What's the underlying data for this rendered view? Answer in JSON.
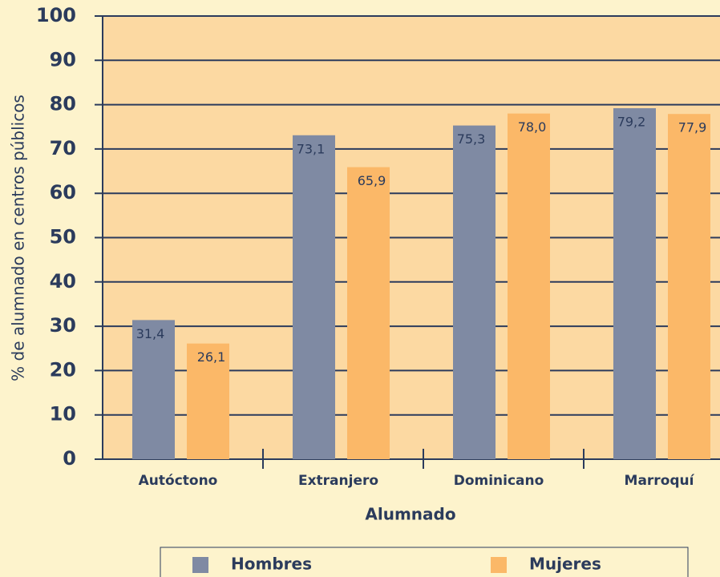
{
  "chart_data": {
    "type": "bar",
    "xlabel": "Alumnado",
    "ylabel": "% de alumnado en centros públicos",
    "categories": [
      "Autóctono",
      "Extranjero",
      "Dominicano",
      "Marroquí"
    ],
    "series": [
      {
        "name": "Hombres",
        "color": "#7f8aa3",
        "values": [
          31.4,
          73.1,
          75.3,
          79.2
        ],
        "value_labels": [
          "31,4",
          "73,1",
          "75,3",
          "79,2"
        ]
      },
      {
        "name": "Mujeres",
        "color": "#fbb868",
        "values": [
          26.1,
          65.9,
          78.0,
          77.9
        ],
        "value_labels": [
          "26,1",
          "65,9",
          "78,0",
          "77,9"
        ]
      }
    ],
    "ylim": [
      0,
      100
    ],
    "yticks": [
      0,
      10,
      20,
      30,
      40,
      50,
      60,
      70,
      80,
      90,
      100
    ],
    "grid": true
  }
}
